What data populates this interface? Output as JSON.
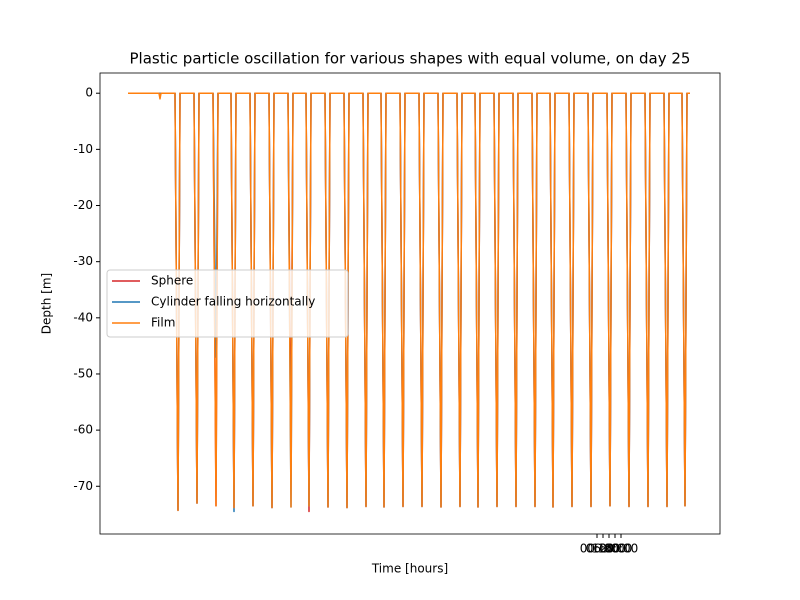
{
  "chart_data": {
    "type": "line",
    "title": "Plastic particle oscillation for various shapes with equal volume, on day 25",
    "x_label": "Time [hours]",
    "y_label": "Depth [m]",
    "xlim": [
      -497,
      123
    ],
    "ylim": [
      -78.5,
      3.6
    ],
    "xticks": [
      {
        "value": 0,
        "label": "00:00"
      },
      {
        "value": 6,
        "label": "06:00"
      },
      {
        "value": 12,
        "label": "12:00"
      },
      {
        "value": 18,
        "label": "18:00"
      },
      {
        "value": 24,
        "label": "00:00"
      }
    ],
    "yticks": [
      0,
      -10,
      -20,
      -30,
      -40,
      -50,
      -60,
      -70
    ],
    "legend": "center left",
    "x": [
      -469,
      -438,
      -437,
      -436,
      -422,
      -419,
      -417,
      -403,
      -400,
      -398,
      -384,
      -381,
      -379,
      -366,
      -363,
      -361,
      -347,
      -344,
      -342,
      -328,
      -325,
      -323,
      -309,
      -306,
      -304,
      -291,
      -288,
      -286,
      -272,
      -269,
      -267,
      -253,
      -250,
      -248,
      -234,
      -231,
      -229,
      -216,
      -213,
      -211,
      -197,
      -194,
      -192,
      -178,
      -175,
      -173,
      -159,
      -156,
      -154,
      -140,
      -137,
      -135,
      -122,
      -119,
      -117,
      -103,
      -100,
      -98,
      -84,
      -81,
      -79,
      -65,
      -62,
      -60,
      -47,
      -44,
      -42,
      -28,
      -25,
      -23,
      -9,
      -6,
      -4,
      10,
      13,
      15,
      29,
      32,
      34,
      48,
      51,
      53,
      67,
      70,
      72,
      85,
      88,
      90,
      93
    ],
    "series": [
      {
        "name": "Sphere",
        "color": "#d62728",
        "values": [
          0,
          0,
          0,
          0,
          0,
          -74.3,
          0,
          0,
          -73,
          0,
          0,
          -73.5,
          0,
          0,
          -73.8,
          0,
          0,
          -73.5,
          0,
          0,
          -73.8,
          0,
          0,
          -64,
          0,
          0,
          -74.5,
          0,
          0,
          -73.7,
          0,
          0,
          -73.8,
          0,
          0,
          -73.6,
          0,
          0,
          -73.7,
          0,
          0,
          -73.6,
          0,
          0,
          -73.6,
          0,
          0,
          -73.7,
          0,
          0,
          -73.6,
          0,
          0,
          -73.7,
          0,
          0,
          -73.6,
          0,
          0,
          -73.6,
          0,
          0,
          -73.6,
          0,
          0,
          -73.7,
          0,
          0,
          -73.6,
          0,
          0,
          -73.6,
          0,
          0,
          -73.5,
          0,
          0,
          -73.6,
          0,
          0,
          -73.6,
          0,
          0,
          -73.6,
          0,
          0,
          -73.5,
          0,
          0
        ]
      },
      {
        "name": "Cylinder falling horizontally",
        "color": "#1f77b4",
        "values": [
          0,
          0,
          0,
          0,
          0,
          -74.3,
          0,
          0,
          -73,
          0,
          0,
          -47,
          0,
          0,
          -74.5,
          0,
          0,
          -73.5,
          0,
          0,
          -73.8,
          0,
          0,
          -73.7,
          0,
          0,
          -73.5,
          0,
          0,
          -73.7,
          0,
          0,
          -73.8,
          0,
          0,
          -73.6,
          0,
          0,
          -73.7,
          0,
          0,
          -73.6,
          0,
          0,
          -73.6,
          0,
          0,
          -73.7,
          0,
          0,
          -73.6,
          0,
          0,
          -73.7,
          0,
          0,
          -73.6,
          0,
          0,
          -73.6,
          0,
          0,
          -73.6,
          0,
          0,
          -73.7,
          0,
          0,
          -73.6,
          0,
          0,
          -73.6,
          0,
          0,
          -73.5,
          0,
          0,
          -73.6,
          0,
          0,
          -73.6,
          0,
          0,
          -73.6,
          0,
          0,
          -73.5,
          0,
          0
        ]
      },
      {
        "name": "Film",
        "color": "#ff7f0e",
        "values": [
          0,
          0,
          -1,
          0,
          0,
          -74.3,
          0,
          0,
          -73,
          0,
          0,
          -73.5,
          0,
          0,
          -73.8,
          0,
          0,
          -73.5,
          0,
          0,
          -73.8,
          0,
          0,
          -73.7,
          0,
          0,
          -73.5,
          0,
          0,
          -73.7,
          0,
          0,
          -73.8,
          0,
          0,
          -73.6,
          0,
          0,
          -73.7,
          0,
          0,
          -73.6,
          0,
          0,
          -73.6,
          0,
          0,
          -73.7,
          0,
          0,
          -73.6,
          0,
          0,
          -73.7,
          0,
          0,
          -73.6,
          0,
          0,
          -73.6,
          0,
          0,
          -73.6,
          0,
          0,
          -73.7,
          0,
          0,
          -73.6,
          0,
          0,
          -73.6,
          0,
          0,
          -73.5,
          0,
          0,
          -73.6,
          0,
          0,
          -73.6,
          0,
          0,
          -73.6,
          0,
          0,
          -73.5,
          0,
          0
        ]
      }
    ]
  }
}
